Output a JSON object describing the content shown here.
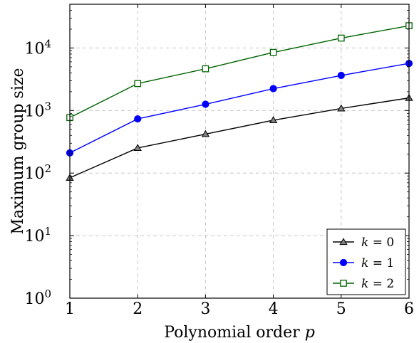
{
  "chart_data": {
    "type": "line",
    "title": "",
    "xlabel": "Polynomial order",
    "xlabel_var": "p",
    "ylabel": "Maximum group size",
    "y_scale": "log",
    "ylim": [
      1,
      50000
    ],
    "xlim": [
      1,
      6
    ],
    "grid": true,
    "legend_position": "bottom-right",
    "x": [
      1,
      2,
      3,
      4,
      5,
      6
    ],
    "x_ticks": [
      "1",
      "2",
      "3",
      "4",
      "5",
      "6"
    ],
    "y_ticks": [
      {
        "value": 1,
        "base": "10",
        "exp": "0"
      },
      {
        "value": 10,
        "base": "10",
        "exp": "1"
      },
      {
        "value": 100,
        "base": "10",
        "exp": "2"
      },
      {
        "value": 1000,
        "base": "10",
        "exp": "3"
      },
      {
        "value": 10000,
        "base": "10",
        "exp": "4"
      }
    ],
    "series": [
      {
        "name_var": "k",
        "name_eq": " = 0",
        "color": "#000000",
        "marker": "triangle",
        "values": [
          84,
          252,
          420,
          700,
          1080,
          1590
        ]
      },
      {
        "name_var": "k",
        "name_eq": " = 1",
        "color": "#0000ff",
        "marker": "circle",
        "values": [
          210,
          735,
          1260,
          2240,
          3640,
          5670
        ]
      },
      {
        "name_var": "k",
        "name_eq": " = 2",
        "color": "#006400",
        "marker": "square",
        "values": [
          770,
          2700,
          4650,
          8500,
          14400,
          22700
        ]
      }
    ]
  }
}
